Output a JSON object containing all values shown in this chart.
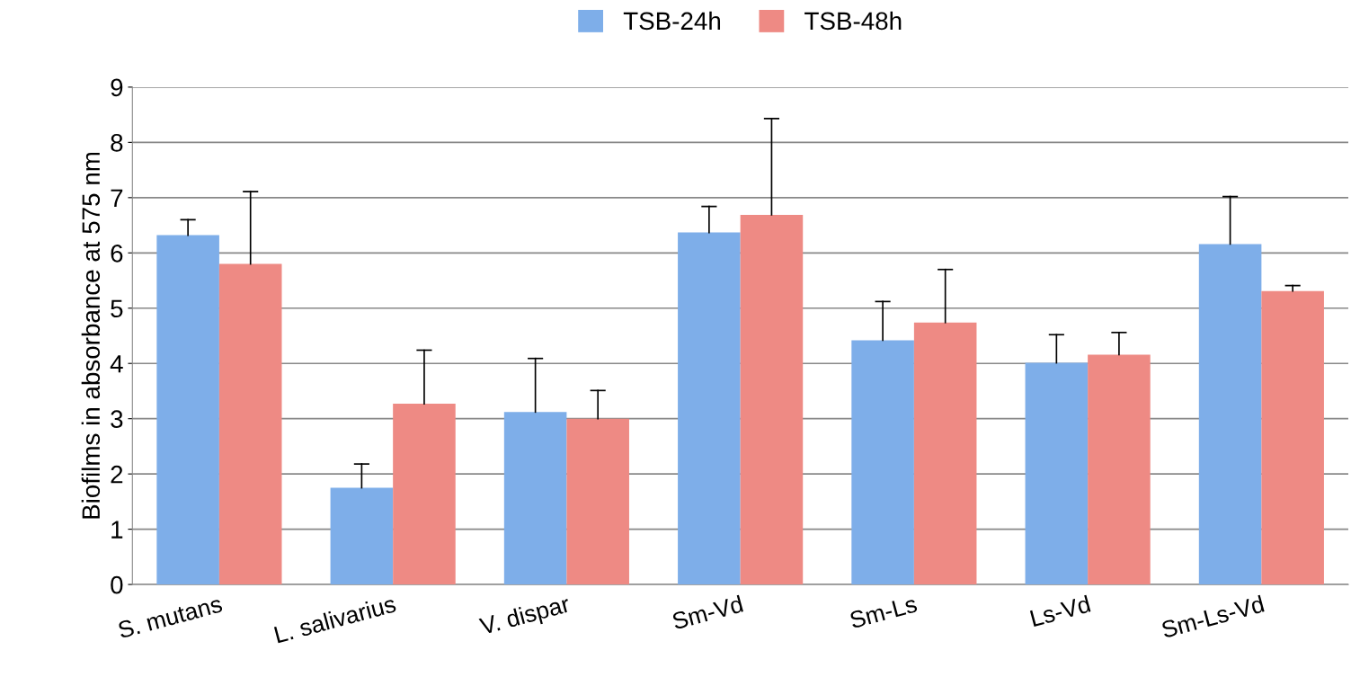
{
  "chart_data": {
    "type": "bar",
    "ylabel": "Biofilms in absorbance at 575 nm",
    "categories": [
      "S. mutans",
      "L. salivarius",
      "V. dispar",
      "Sm-Vd",
      "Sm-Ls",
      "Ls-Vd",
      "Sm-Ls-Vd"
    ],
    "series": [
      {
        "name": "TSB-24h",
        "color": "#7eaee9",
        "values": [
          6.32,
          1.75,
          3.12,
          6.37,
          4.42,
          4.01,
          6.16
        ],
        "errors": [
          [
            6.32,
            6.6
          ],
          [
            1.75,
            2.18
          ],
          [
            3.12,
            4.09
          ],
          [
            6.37,
            6.84
          ],
          [
            4.42,
            5.12
          ],
          [
            4.01,
            4.52
          ],
          [
            6.16,
            7.02
          ]
        ]
      },
      {
        "name": "TSB-48h",
        "color": "#ee8a84",
        "values": [
          5.8,
          3.27,
          3.0,
          6.69,
          4.74,
          4.16,
          5.31
        ],
        "errors": [
          [
            5.8,
            7.11
          ],
          [
            3.27,
            4.24
          ],
          [
            3.0,
            3.51
          ],
          [
            6.69,
            8.43
          ],
          [
            4.74,
            5.7
          ],
          [
            4.16,
            4.56
          ],
          [
            5.31,
            5.41
          ]
        ]
      }
    ],
    "ylim": [
      0,
      9
    ],
    "yticks": [
      0,
      1,
      2,
      3,
      4,
      5,
      6,
      7,
      8,
      9
    ],
    "grid": "y",
    "legend": "top"
  }
}
